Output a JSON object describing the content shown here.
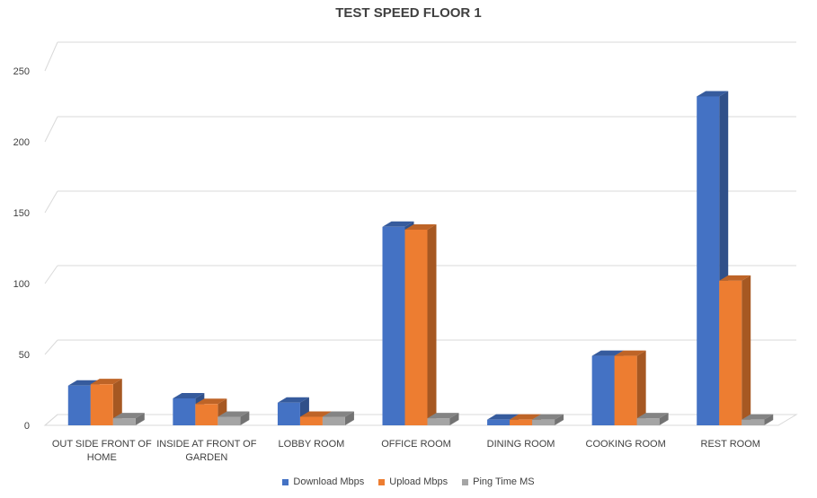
{
  "chart_data": {
    "type": "bar",
    "title": "TEST SPEED FLOOR 1",
    "categories": [
      [
        "OUT SIDE FRONT OF",
        "HOME"
      ],
      [
        "INSIDE AT FRONT OF",
        "GARDEN"
      ],
      [
        "LOBBY ROOM"
      ],
      [
        "OFFICE ROOM"
      ],
      [
        "DINING ROOM"
      ],
      [
        "COOKING ROOM"
      ],
      [
        "REST ROOM"
      ]
    ],
    "series": [
      {
        "name": "Download Mbps",
        "color": "#4472C4",
        "values": [
          28,
          19,
          16,
          140,
          4,
          49,
          232
        ]
      },
      {
        "name": "Upload Mbps",
        "color": "#ED7D31",
        "values": [
          29,
          15,
          6,
          138,
          4,
          49,
          102
        ]
      },
      {
        "name": "Ping Time MS",
        "color": "#A5A5A5",
        "values": [
          5,
          6,
          6,
          5,
          4,
          5,
          4
        ]
      }
    ],
    "yticks": [
      0,
      50,
      100,
      150,
      200,
      250
    ],
    "ylim": [
      0,
      250
    ],
    "grid": true,
    "legend_position": "bottom"
  }
}
